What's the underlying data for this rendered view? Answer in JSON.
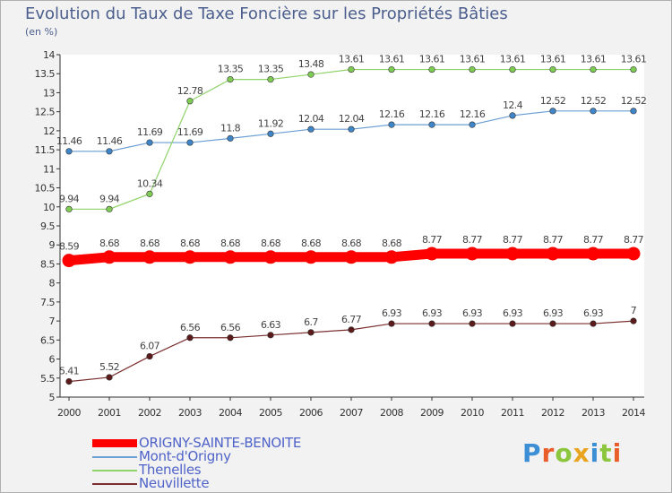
{
  "chart_data": {
    "type": "line",
    "title": "Evolution du Taux de Taxe Foncière sur les Propriétés Bâties",
    "ylabel": "(en %)",
    "xlabel": "",
    "categories": [
      "2000",
      "2001",
      "2002",
      "2003",
      "2004",
      "2005",
      "2006",
      "2007",
      "2008",
      "2009",
      "2010",
      "2011",
      "2012",
      "2013",
      "2014"
    ],
    "ylim": [
      5,
      14
    ],
    "yticks": [
      5,
      5.5,
      6,
      6.5,
      7,
      7.5,
      8,
      8.5,
      9,
      9.5,
      10,
      10.5,
      11,
      11.5,
      12,
      12.5,
      13,
      13.5,
      14
    ],
    "ytick_labels": [
      "5",
      "5.5",
      "6",
      "6.5",
      "7",
      "7.5",
      "8",
      "8.5",
      "9",
      "9.5",
      "10",
      "10.5",
      "11",
      "11.5",
      "12",
      "12.5",
      "13",
      "13.5",
      "14"
    ],
    "grid": false,
    "series": [
      {
        "name": "ORIGNY-SAINTE-BENOITE",
        "color": "#ff0000",
        "marker_color": "#ff0000",
        "style": "thick",
        "values": [
          8.59,
          8.68,
          8.68,
          8.68,
          8.68,
          8.68,
          8.68,
          8.68,
          8.68,
          8.77,
          8.77,
          8.77,
          8.77,
          8.77,
          8.77
        ],
        "labels": [
          "8.59",
          "8.68",
          "8.68",
          "8.68",
          "8.68",
          "8.68",
          "8.68",
          "8.68",
          "8.68",
          "8.77",
          "8.77",
          "8.77",
          "8.77",
          "8.77",
          "8.77"
        ]
      },
      {
        "name": "Mont-d'Origny",
        "color": "#6a9fd4",
        "marker_color": "#3f86c9",
        "style": "thin",
        "values": [
          11.46,
          11.46,
          11.69,
          11.69,
          11.8,
          11.92,
          12.04,
          12.04,
          12.16,
          12.16,
          12.16,
          12.4,
          12.52,
          12.52,
          12.52
        ],
        "labels": [
          "11.46",
          "11.46",
          "11.69",
          "11.69",
          "11.8",
          "11.92",
          "12.04",
          "12.04",
          "12.16",
          "12.16",
          "12.16",
          "12.4",
          "12.52",
          "12.52",
          "12.52"
        ]
      },
      {
        "name": "Thenelles",
        "color": "#8fd36a",
        "marker_color": "#7fcc55",
        "style": "thin",
        "values": [
          9.94,
          9.94,
          10.34,
          12.78,
          13.35,
          13.35,
          13.48,
          13.61,
          13.61,
          13.61,
          13.61,
          13.61,
          13.61,
          13.61,
          13.61
        ],
        "labels": [
          "9.94",
          "9.94",
          "10.34",
          "12.78",
          "13.35",
          "13.35",
          "13.48",
          "13.61",
          "13.61",
          "13.61",
          "13.61",
          "13.61",
          "13.61",
          "13.61",
          "13.61"
        ]
      },
      {
        "name": "Neuvillette",
        "color": "#7a2e2e",
        "marker_color": "#5c1a1a",
        "style": "thin",
        "values": [
          5.41,
          5.52,
          6.07,
          6.56,
          6.56,
          6.63,
          6.7,
          6.77,
          6.93,
          6.93,
          6.93,
          6.93,
          6.93,
          6.93,
          7
        ],
        "labels": [
          "5.41",
          "5.52",
          "6.07",
          "6.56",
          "6.56",
          "6.63",
          "6.7",
          "6.77",
          "6.93",
          "6.93",
          "6.93",
          "6.93",
          "6.93",
          "6.93",
          "7"
        ]
      }
    ]
  },
  "logo": {
    "letters": [
      "P",
      "r",
      "o",
      "x",
      "i",
      "t",
      "i"
    ],
    "colors": [
      "#3c8fd4",
      "#e85d2a",
      "#8cc63f",
      "#e8a31f",
      "#3c8fd4",
      "#8cc63f",
      "#e85d2a"
    ]
  }
}
